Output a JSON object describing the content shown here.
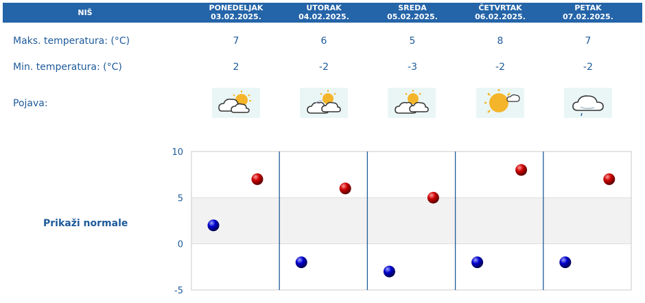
{
  "city": "NIŠ",
  "days": [
    {
      "name": "PONEDELJAK",
      "date": "03.02.2025.",
      "max": "7",
      "min": "2",
      "icon": "partly-cloudy-sun-icon"
    },
    {
      "name": "UTORAK",
      "date": "04.02.2025.",
      "max": "6",
      "min": "-2",
      "icon": "sun-behind-clouds-icon"
    },
    {
      "name": "SREDA",
      "date": "05.02.2025.",
      "max": "5",
      "min": "-3",
      "icon": "sun-behind-clouds-icon"
    },
    {
      "name": "ČETVRTAK",
      "date": "06.02.2025.",
      "max": "8",
      "min": "-2",
      "icon": "mostly-sunny-icon"
    },
    {
      "name": "PETAK",
      "date": "07.02.2025.",
      "max": "7",
      "min": "-2",
      "icon": "cloud-light-rain-icon"
    }
  ],
  "labels": {
    "max": "Maks. temperatura: (°C)",
    "min": "Min. temperatura: (°C)",
    "phenomenon": "Pojava:"
  },
  "show_normals": "Prikaži normale",
  "colors": {
    "header_bg": "#2464a8",
    "text": "#1d5a9a",
    "max_marker": "#cc0000",
    "min_marker": "#0000cc",
    "band": "#f2f2f2"
  },
  "chart_data": {
    "type": "scatter",
    "categories": [
      "PONEDELJAK",
      "UTORAK",
      "SREDA",
      "ČETVRTAK",
      "PETAK"
    ],
    "series": [
      {
        "values": [
          7,
          6,
          5,
          8,
          7
        ],
        "color": "#cc0000"
      },
      {
        "values": [
          2,
          -2,
          -3,
          -2,
          -2
        ],
        "color": "#0000cc"
      }
    ],
    "yticks": [
      10,
      5,
      0,
      -5
    ],
    "ylim": [
      -5,
      10
    ],
    "band": [
      0,
      5
    ],
    "grid": false,
    "legend": "none"
  }
}
